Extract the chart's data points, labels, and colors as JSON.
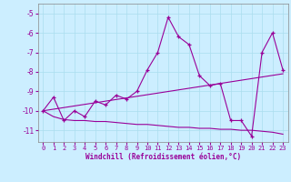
{
  "xlabel": "Windchill (Refroidissement éolien,°C)",
  "background_color": "#cceeff",
  "grid_color": "#aaddee",
  "line_color": "#990099",
  "xlim": [
    -0.5,
    23.5
  ],
  "ylim": [
    -11.6,
    -4.5
  ],
  "yticks": [
    -11,
    -10,
    -9,
    -8,
    -7,
    -6,
    -5
  ],
  "xticks": [
    0,
    1,
    2,
    3,
    4,
    5,
    6,
    7,
    8,
    9,
    10,
    11,
    12,
    13,
    14,
    15,
    16,
    17,
    18,
    19,
    20,
    21,
    22,
    23
  ],
  "series1_x": [
    0,
    1,
    2,
    3,
    4,
    5,
    6,
    7,
    8,
    9,
    10,
    11,
    12,
    13,
    14,
    15,
    16,
    17,
    18,
    19,
    20,
    21,
    22,
    23
  ],
  "series1_y": [
    -10.0,
    -9.3,
    -10.5,
    -10.0,
    -10.3,
    -9.5,
    -9.7,
    -9.2,
    -9.4,
    -9.0,
    -7.9,
    -7.0,
    -5.2,
    -6.2,
    -6.6,
    -8.2,
    -8.7,
    -8.6,
    -10.5,
    -10.5,
    -11.3,
    -7.0,
    -6.0,
    -7.9
  ],
  "series2_x": [
    0,
    1,
    2,
    3,
    4,
    5,
    6,
    7,
    8,
    9,
    10,
    11,
    12,
    13,
    14,
    15,
    16,
    17,
    18,
    19,
    20,
    21,
    22,
    23
  ],
  "series2_y": [
    -10.0,
    -10.3,
    -10.45,
    -10.5,
    -10.5,
    -10.55,
    -10.55,
    -10.6,
    -10.65,
    -10.7,
    -10.7,
    -10.75,
    -10.8,
    -10.85,
    -10.85,
    -10.9,
    -10.9,
    -10.95,
    -10.95,
    -11.0,
    -11.0,
    -11.05,
    -11.1,
    -11.2
  ],
  "series3_x": [
    0,
    23
  ],
  "series3_y": [
    -10.0,
    -8.1
  ]
}
